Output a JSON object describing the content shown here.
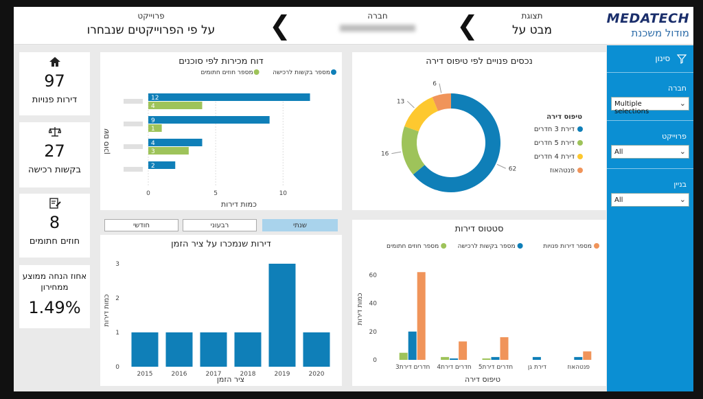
{
  "header": {
    "project_label": "פרוייקט",
    "project_value": "על פי הפרוייקטים שנבחרו",
    "company_label": "חברה",
    "company_value": "",
    "view_label": "תצוגת",
    "view_value": "מבט על",
    "logo_text": "MEDATECH",
    "logo_sub": "מודול משכנת"
  },
  "sidebar": {
    "filter_title": "סינון",
    "company_label": "חברה",
    "company_value": "Multiple selections",
    "project_label": "פרוייקט",
    "project_value": "All",
    "building_label": "בניין",
    "building_value": "All"
  },
  "kpis": [
    {
      "icon": "home-icon",
      "value": "97",
      "label": "דירות פנויות"
    },
    {
      "icon": "scale-icon",
      "value": "27",
      "label": "בקשות רכישה"
    },
    {
      "icon": "signed-doc-icon",
      "value": "8",
      "label": "חוזים חתומים"
    },
    {
      "icon": "",
      "value": "1.49%",
      "label": "אחוז הנחה ממוצע ממחירון"
    }
  ],
  "time_buttons": {
    "yearly": "שנתי",
    "quarterly": "רבעוני",
    "monthly": "חודשי"
  },
  "colors": {
    "blue": "#0f7fb8",
    "green": "#9ec35a",
    "yellow": "#fdc82f",
    "orange": "#f0945a",
    "sidebar": "#0b8fd3"
  },
  "chart_data": [
    {
      "type": "bar",
      "orientation": "horizontal",
      "title": "דוח מכירות לפי סוכנים",
      "xlabel": "כמות דירות",
      "ylabel": "שם סוכן",
      "categories": [
        "",
        "",
        "",
        ""
      ],
      "series": [
        {
          "name": "מספר בקשות לרכישה",
          "color": "#0f7fb8",
          "values": [
            12,
            9,
            4,
            2
          ]
        },
        {
          "name": "מספר חוזים חתומים",
          "color": "#9ec35a",
          "values": [
            4,
            1,
            3,
            null
          ]
        }
      ],
      "xlim": [
        0,
        13.5
      ],
      "xticks": [
        0,
        5,
        10
      ],
      "legend": "top-right"
    },
    {
      "type": "pie",
      "donut": true,
      "title": "נכסים פנויים לפי טיפוס דירה",
      "legend_title": "טיפוס דירה",
      "categories": [
        "דירת 3 חדרים",
        "דירת 5 חדרים",
        "דירת 4 חדרים",
        "פנטהאוז"
      ],
      "values": [
        62,
        16,
        13,
        6
      ],
      "colors": [
        "#0f7fb8",
        "#9ec35a",
        "#fdc82f",
        "#f0945a"
      ],
      "legend": "right"
    },
    {
      "type": "bar",
      "title": "דירות שנמכרו על ציר הזמן",
      "xlabel": "ציר הזמן",
      "ylabel": "כמות דירות",
      "categories": [
        "2015",
        "2016",
        "2017",
        "2018",
        "2019",
        "2020"
      ],
      "values": [
        1,
        1,
        1,
        1,
        3,
        1
      ],
      "color": "#0f7fb8",
      "ylim": [
        0,
        3.2
      ],
      "yticks": [
        0,
        1,
        2,
        3
      ]
    },
    {
      "type": "bar",
      "title": "סטטוס דירות",
      "xlabel": "טיפוס דירה",
      "ylabel": "כמות דירות",
      "categories": [
        "3חדרים דירת",
        "4חדרים דירת",
        "5חדרים דירת",
        "דירת גן",
        "פנטהאוז"
      ],
      "series": [
        {
          "name": "מספר חוזים חתומים",
          "color": "#9ec35a",
          "values": [
            5,
            2,
            1,
            0,
            0
          ]
        },
        {
          "name": "מספר בקשות לרכישה",
          "color": "#0f7fb8",
          "values": [
            20,
            1,
            2,
            2,
            2
          ]
        },
        {
          "name": "מספר דירות פנויות",
          "color": "#f0945a",
          "values": [
            62,
            13,
            16,
            0,
            6
          ]
        }
      ],
      "ylim": [
        0,
        66
      ],
      "yticks": [
        0,
        20,
        40,
        60
      ],
      "legend": "top"
    }
  ]
}
